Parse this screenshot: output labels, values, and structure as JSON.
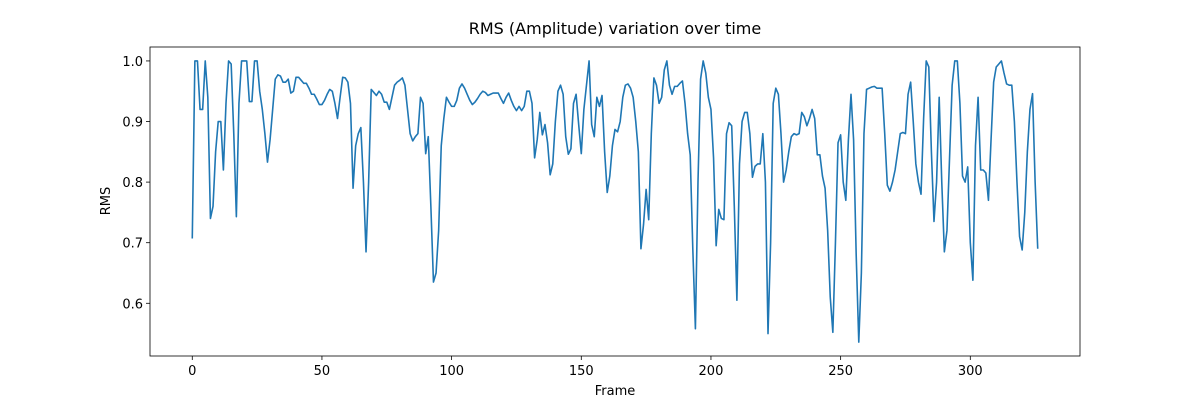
{
  "chart_data": {
    "type": "line",
    "title": "RMS (Amplitude) variation over time",
    "x_label": "Frame",
    "y_label": "RMS",
    "color": "#1f77b4",
    "xlim": [
      -16.3,
      342.3
    ],
    "ylim": [
      0.513,
      1.023
    ],
    "xticks": [
      0,
      50,
      100,
      150,
      200,
      250,
      300
    ],
    "yticks": [
      0.6,
      0.7,
      0.8,
      0.9,
      {
        "value": 1,
        "label": "1.0"
      }
    ],
    "x": [
      0,
      1,
      2,
      3,
      4,
      5,
      6,
      7,
      8,
      9,
      10,
      11,
      12,
      13,
      14,
      15,
      16,
      17,
      18,
      19,
      20,
      21,
      22,
      23,
      24,
      25,
      26,
      27,
      28,
      29,
      30,
      31,
      32,
      33,
      34,
      35,
      36,
      37,
      38,
      39,
      40,
      41,
      42,
      43,
      44,
      45,
      46,
      47,
      48,
      49,
      50,
      51,
      52,
      53,
      54,
      55,
      56,
      57,
      58,
      59,
      60,
      61,
      62,
      63,
      64,
      65,
      66,
      67,
      68,
      69,
      70,
      71,
      72,
      73,
      74,
      75,
      76,
      77,
      78,
      79,
      80,
      81,
      82,
      83,
      84,
      85,
      86,
      87,
      88,
      89,
      90,
      91,
      92,
      93,
      94,
      95,
      96,
      97,
      98,
      99,
      100,
      101,
      102,
      103,
      104,
      105,
      106,
      107,
      108,
      109,
      110,
      111,
      112,
      113,
      114,
      115,
      116,
      117,
      118,
      119,
      120,
      121,
      122,
      123,
      124,
      125,
      126,
      127,
      128,
      129,
      130,
      131,
      132,
      133,
      134,
      135,
      136,
      137,
      138,
      139,
      140,
      141,
      142,
      143,
      144,
      145,
      146,
      147,
      148,
      149,
      150,
      151,
      152,
      153,
      154,
      155,
      156,
      157,
      158,
      159,
      160,
      161,
      162,
      163,
      164,
      165,
      166,
      167,
      168,
      169,
      170,
      171,
      172,
      173,
      174,
      175,
      176,
      177,
      178,
      179,
      180,
      181,
      182,
      183,
      184,
      185,
      186,
      187,
      188,
      189,
      190,
      191,
      192,
      193,
      194,
      195,
      196,
      197,
      198,
      199,
      200,
      201,
      202,
      203,
      204,
      205,
      206,
      207,
      208,
      209,
      210,
      211,
      212,
      213,
      214,
      215,
      216,
      217,
      218,
      219,
      220,
      221,
      222,
      223,
      224,
      225,
      226,
      227,
      228,
      229,
      230,
      231,
      232,
      233,
      234,
      235,
      236,
      237,
      238,
      239,
      240,
      241,
      242,
      243,
      244,
      245,
      246,
      247,
      248,
      249,
      250,
      251,
      252,
      253,
      254,
      255,
      256,
      257,
      258,
      259,
      260,
      261,
      262,
      263,
      264,
      265,
      266,
      267,
      268,
      269,
      270,
      271,
      272,
      273,
      274,
      275,
      276,
      277,
      278,
      279,
      280,
      281,
      282,
      283,
      284,
      285,
      286,
      287,
      288,
      289,
      290,
      291,
      292,
      293,
      294,
      295,
      296,
      297,
      298,
      299,
      300,
      301,
      302,
      303,
      304,
      305,
      306,
      307,
      308,
      309,
      310,
      311,
      312,
      313,
      314,
      315,
      316,
      317,
      318,
      319,
      320,
      321,
      322,
      323,
      324,
      325,
      326
    ],
    "values": [
      0.707,
      1.0,
      1.0,
      0.92,
      0.92,
      1.0,
      0.94,
      0.74,
      0.76,
      0.85,
      0.9,
      0.9,
      0.82,
      0.93,
      1.0,
      0.995,
      0.88,
      0.743,
      0.93,
      1.0,
      1.0,
      1.0,
      0.933,
      0.933,
      1.0,
      1.0,
      0.95,
      0.92,
      0.88,
      0.833,
      0.87,
      0.92,
      0.97,
      0.977,
      0.975,
      0.965,
      0.965,
      0.97,
      0.947,
      0.95,
      0.973,
      0.973,
      0.968,
      0.963,
      0.963,
      0.955,
      0.945,
      0.945,
      0.937,
      0.928,
      0.928,
      0.935,
      0.945,
      0.953,
      0.95,
      0.93,
      0.905,
      0.94,
      0.973,
      0.972,
      0.965,
      0.93,
      0.79,
      0.86,
      0.88,
      0.89,
      0.8,
      0.685,
      0.8,
      0.953,
      0.948,
      0.943,
      0.95,
      0.945,
      0.932,
      0.932,
      0.92,
      0.94,
      0.96,
      0.965,
      0.968,
      0.972,
      0.96,
      0.92,
      0.88,
      0.868,
      0.875,
      0.88,
      0.94,
      0.93,
      0.847,
      0.875,
      0.76,
      0.635,
      0.65,
      0.72,
      0.86,
      0.905,
      0.94,
      0.932,
      0.925,
      0.925,
      0.935,
      0.955,
      0.962,
      0.955,
      0.945,
      0.935,
      0.928,
      0.932,
      0.938,
      0.945,
      0.95,
      0.948,
      0.943,
      0.945,
      0.947,
      0.947,
      0.947,
      0.938,
      0.93,
      0.94,
      0.947,
      0.935,
      0.925,
      0.918,
      0.925,
      0.918,
      0.925,
      0.95,
      0.95,
      0.93,
      0.84,
      0.87,
      0.915,
      0.878,
      0.895,
      0.865,
      0.812,
      0.83,
      0.9,
      0.95,
      0.96,
      0.945,
      0.875,
      0.846,
      0.855,
      0.93,
      0.945,
      0.895,
      0.847,
      0.92,
      0.96,
      1.0,
      0.895,
      0.875,
      0.94,
      0.925,
      0.943,
      0.85,
      0.783,
      0.81,
      0.86,
      0.887,
      0.883,
      0.9,
      0.94,
      0.96,
      0.962,
      0.955,
      0.94,
      0.9,
      0.85,
      0.69,
      0.73,
      0.788,
      0.738,
      0.88,
      0.972,
      0.96,
      0.93,
      0.94,
      0.985,
      1.0,
      0.96,
      0.945,
      0.958,
      0.958,
      0.963,
      0.967,
      0.93,
      0.88,
      0.845,
      0.69,
      0.558,
      0.8,
      0.97,
      1.0,
      0.98,
      0.94,
      0.92,
      0.84,
      0.695,
      0.755,
      0.74,
      0.738,
      0.88,
      0.898,
      0.893,
      0.76,
      0.605,
      0.83,
      0.9,
      0.915,
      0.915,
      0.88,
      0.808,
      0.826,
      0.83,
      0.83,
      0.88,
      0.8,
      0.55,
      0.7,
      0.93,
      0.955,
      0.945,
      0.88,
      0.8,
      0.82,
      0.85,
      0.875,
      0.88,
      0.878,
      0.88,
      0.915,
      0.908,
      0.893,
      0.905,
      0.92,
      0.905,
      0.845,
      0.845,
      0.81,
      0.79,
      0.72,
      0.61,
      0.552,
      0.7,
      0.865,
      0.878,
      0.8,
      0.77,
      0.87,
      0.945,
      0.87,
      0.68,
      0.536,
      0.65,
      0.88,
      0.953,
      0.955,
      0.957,
      0.958,
      0.955,
      0.955,
      0.955,
      0.88,
      0.795,
      0.785,
      0.8,
      0.82,
      0.85,
      0.88,
      0.882,
      0.88,
      0.945,
      0.965,
      0.9,
      0.83,
      0.8,
      0.78,
      0.905,
      1.0,
      0.99,
      0.85,
      0.735,
      0.8,
      0.94,
      0.8,
      0.685,
      0.72,
      0.84,
      0.96,
      1.0,
      1.0,
      0.93,
      0.81,
      0.8,
      0.825,
      0.7,
      0.638,
      0.86,
      0.94,
      0.82,
      0.82,
      0.815,
      0.77,
      0.87,
      0.965,
      0.99,
      0.995,
      1.0,
      0.98,
      0.962,
      0.96,
      0.96,
      0.9,
      0.8,
      0.71,
      0.688,
      0.75,
      0.85,
      0.92,
      0.946,
      0.8,
      0.69
    ]
  }
}
